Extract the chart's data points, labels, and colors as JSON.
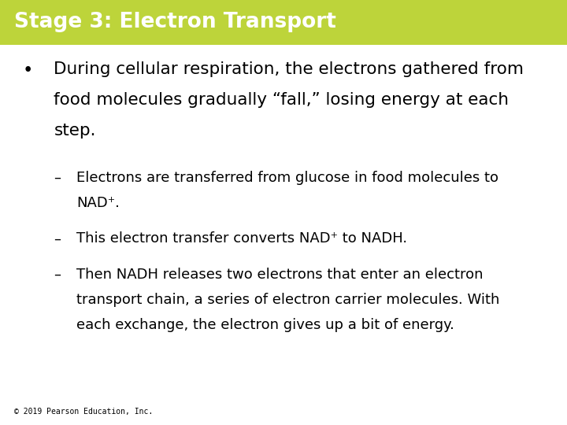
{
  "title": "Stage 3: Electron Transport",
  "title_bg_color": "#bdd43a",
  "title_text_color": "#ffffff",
  "bg_color": "#ffffff",
  "footer_text": "© 2019 Pearson Education, Inc.",
  "bullet_text": "During cellular respiration, the electrons gathered from\nfood molecules gradually “fall,” losing energy at each\nstep.",
  "sub_bullets": [
    "Electrons are transferred from glucose in food molecules to\nNAD⁺.",
    "This electron transfer converts NAD⁺ to NADH.",
    "Then NADH releases two electrons that enter an electron\ntransport chain, a series of electron carrier molecules. With\neach exchange, the electron gives up a bit of energy."
  ],
  "title_fontsize": 19,
  "bullet_fontsize": 15.5,
  "sub_bullet_fontsize": 13,
  "footer_fontsize": 7,
  "title_bar_height": 0.105
}
